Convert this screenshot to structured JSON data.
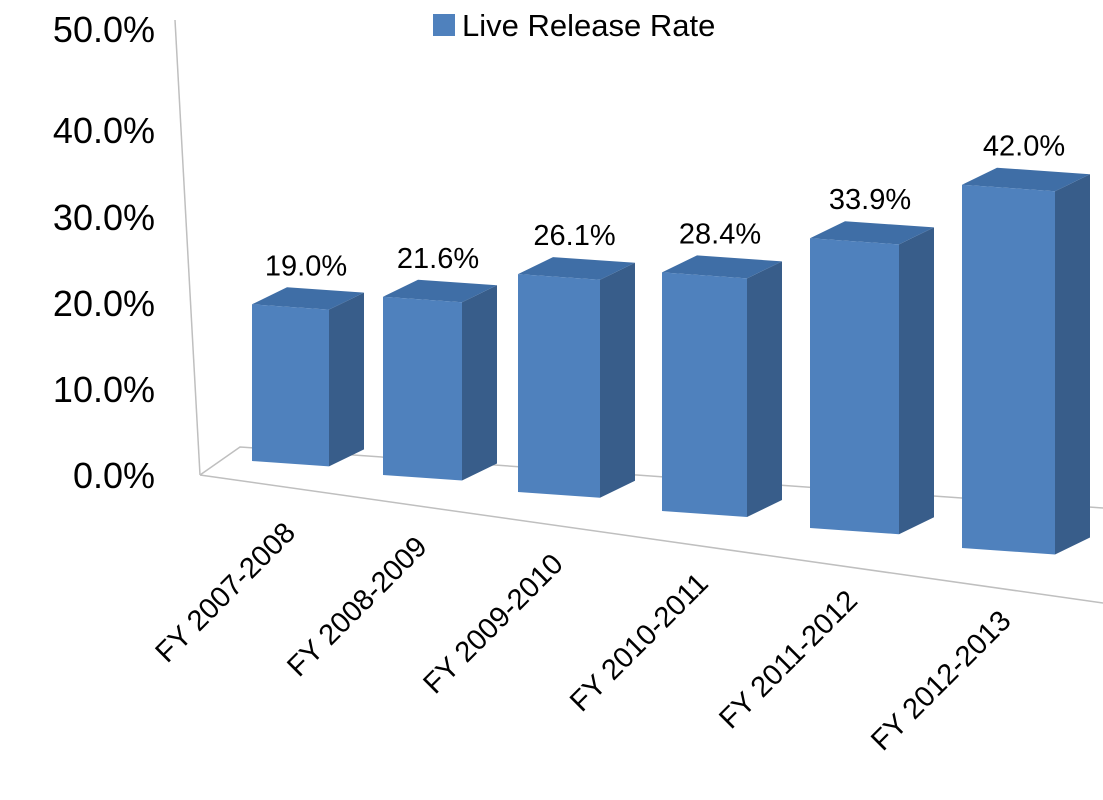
{
  "chart_data": {
    "type": "bar",
    "categories": [
      "FY 2007-2008",
      "FY 2008-2009",
      "FY 2009-2010",
      "FY 2010-2011",
      "FY 2011-2012",
      "FY 2012-2013"
    ],
    "series": [
      {
        "name": "Live Release Rate",
        "values": [
          19.0,
          21.6,
          26.1,
          28.4,
          33.9,
          42.0
        ]
      }
    ],
    "data_labels": [
      "19.0%",
      "21.6%",
      "26.1%",
      "28.4%",
      "33.9%",
      "42.0%"
    ],
    "yticks": [
      "0.0%",
      "10.0%",
      "20.0%",
      "30.0%",
      "40.0%",
      "50.0%"
    ],
    "ylim": [
      0,
      50
    ],
    "legend": {
      "label": "Live Release Rate",
      "position": "top"
    },
    "grid": false,
    "three_d": true,
    "colors": {
      "front": "#4f81bd",
      "side": "#385d8a",
      "top": "#3f6ea6",
      "axis": "#bfbfbf"
    }
  }
}
